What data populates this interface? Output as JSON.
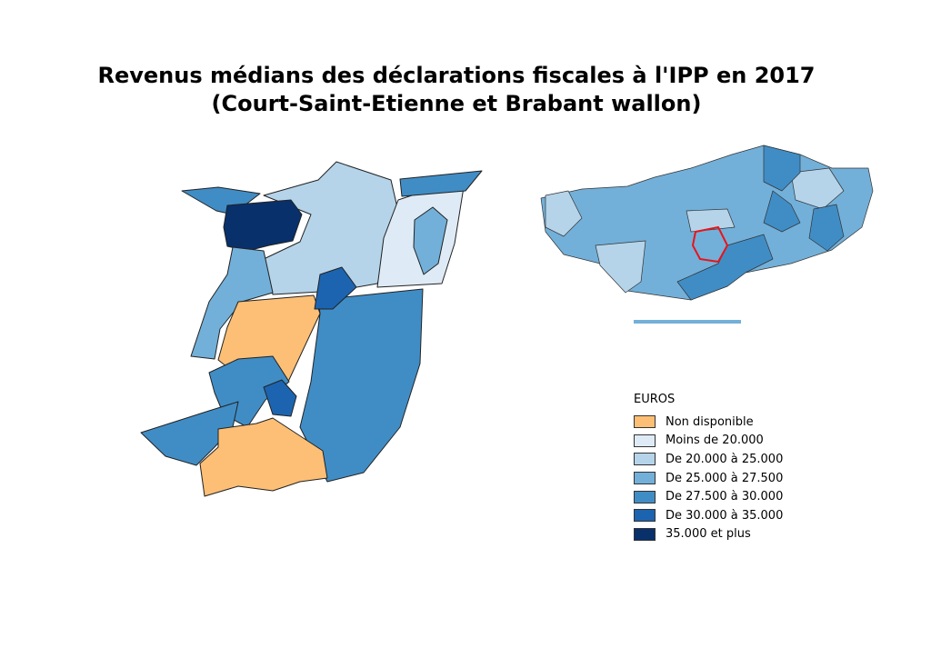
{
  "title": {
    "line1": "Revenus médians des déclarations fiscales à l'IPP en 2017",
    "line2": "(Court-Saint-Etienne et Brabant wallon)"
  },
  "legend": {
    "title": "EUROS",
    "items": [
      {
        "label": "Non disponible",
        "color": "#fdbf75"
      },
      {
        "label": "Moins de 20.000",
        "color": "#deebf7"
      },
      {
        "label": "De 20.000 à 25.000",
        "color": "#b5d4ea"
      },
      {
        "label": "De 25.000 à 27.500",
        "color": "#72b0d9"
      },
      {
        "label": "De 27.500 à 30.000",
        "color": "#408dc6"
      },
      {
        "label": "De 30.000 à 35.000",
        "color": "#1c64b0"
      },
      {
        "label": "35.000 et plus",
        "color": "#08306b"
      }
    ]
  }
}
